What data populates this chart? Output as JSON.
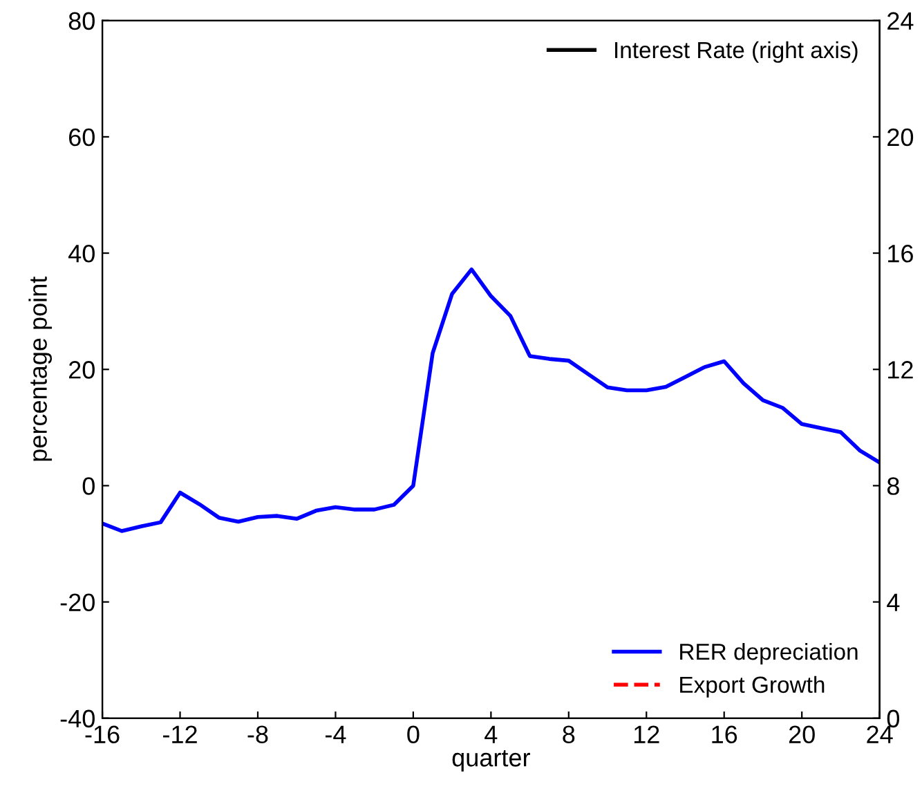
{
  "chart_data": {
    "type": "line",
    "xlabel": "quarter",
    "ylabel": "percentage point",
    "xlim": [
      -16,
      24
    ],
    "xticks": [
      -16,
      -12,
      -8,
      -4,
      0,
      4,
      8,
      12,
      16,
      20,
      24
    ],
    "ylim": [
      -40,
      80
    ],
    "yticks": [
      -40,
      -20,
      0,
      20,
      40,
      60,
      80
    ],
    "y2lim": [
      0,
      24
    ],
    "y2ticks": [
      0,
      4,
      8,
      12,
      16,
      20,
      24
    ],
    "grid": false,
    "legend": "right",
    "marker": "none",
    "x": [
      -16,
      -15,
      -14,
      -13,
      -12,
      -11,
      -10,
      -9,
      -8,
      -7,
      -6,
      -5,
      -4,
      -3,
      -2,
      -1,
      0,
      1,
      2,
      3,
      4,
      5,
      6,
      7,
      8,
      9,
      10,
      11,
      12,
      13,
      14,
      15,
      16,
      17,
      18,
      19,
      20,
      21,
      22,
      23,
      24
    ],
    "series": [
      {
        "name": "Interest Rate (right axis)",
        "color": "#000000",
        "axis": "y2",
        "line_style": "solid",
        "values": [
          null,
          null,
          null,
          null,
          null,
          null,
          null,
          null,
          null,
          null,
          null,
          null,
          null,
          null,
          null,
          null,
          null,
          null,
          null,
          null,
          null,
          null,
          null,
          null,
          null,
          null,
          null,
          null,
          null,
          null,
          null,
          null,
          null,
          null,
          null,
          null,
          null,
          null,
          null,
          null,
          null
        ]
      },
      {
        "name": "RER depreciation",
        "color": "#0000ff",
        "line_style": "solid",
        "values": [
          -6.5,
          -7.8,
          -7,
          -6.3,
          -1.2,
          -3.2,
          -5.5,
          -6.2,
          -5.4,
          -5.2,
          -5.7,
          -4.3,
          -3.7,
          -4.1,
          -4.1,
          -3.3,
          0,
          22.8,
          33,
          37.2,
          32.6,
          29.2,
          22.3,
          21.8,
          21.5,
          19.2,
          16.9,
          16.4,
          16.4,
          17,
          18.7,
          20.4,
          21.4,
          17.6,
          14.7,
          13.4,
          10.6,
          9.9,
          9.2,
          6,
          4
        ]
      },
      {
        "name": "Export Growth",
        "color": "#ff0000",
        "line_style": "dashed",
        "values": [
          null,
          null,
          null,
          null,
          null,
          null,
          null,
          null,
          null,
          null,
          null,
          null,
          null,
          null,
          null,
          null,
          null,
          null,
          null,
          null,
          null,
          null,
          null,
          null,
          null,
          null,
          null,
          null,
          null,
          null,
          null,
          null,
          null,
          null,
          null,
          null,
          null,
          null,
          null,
          null,
          null
        ]
      }
    ]
  }
}
